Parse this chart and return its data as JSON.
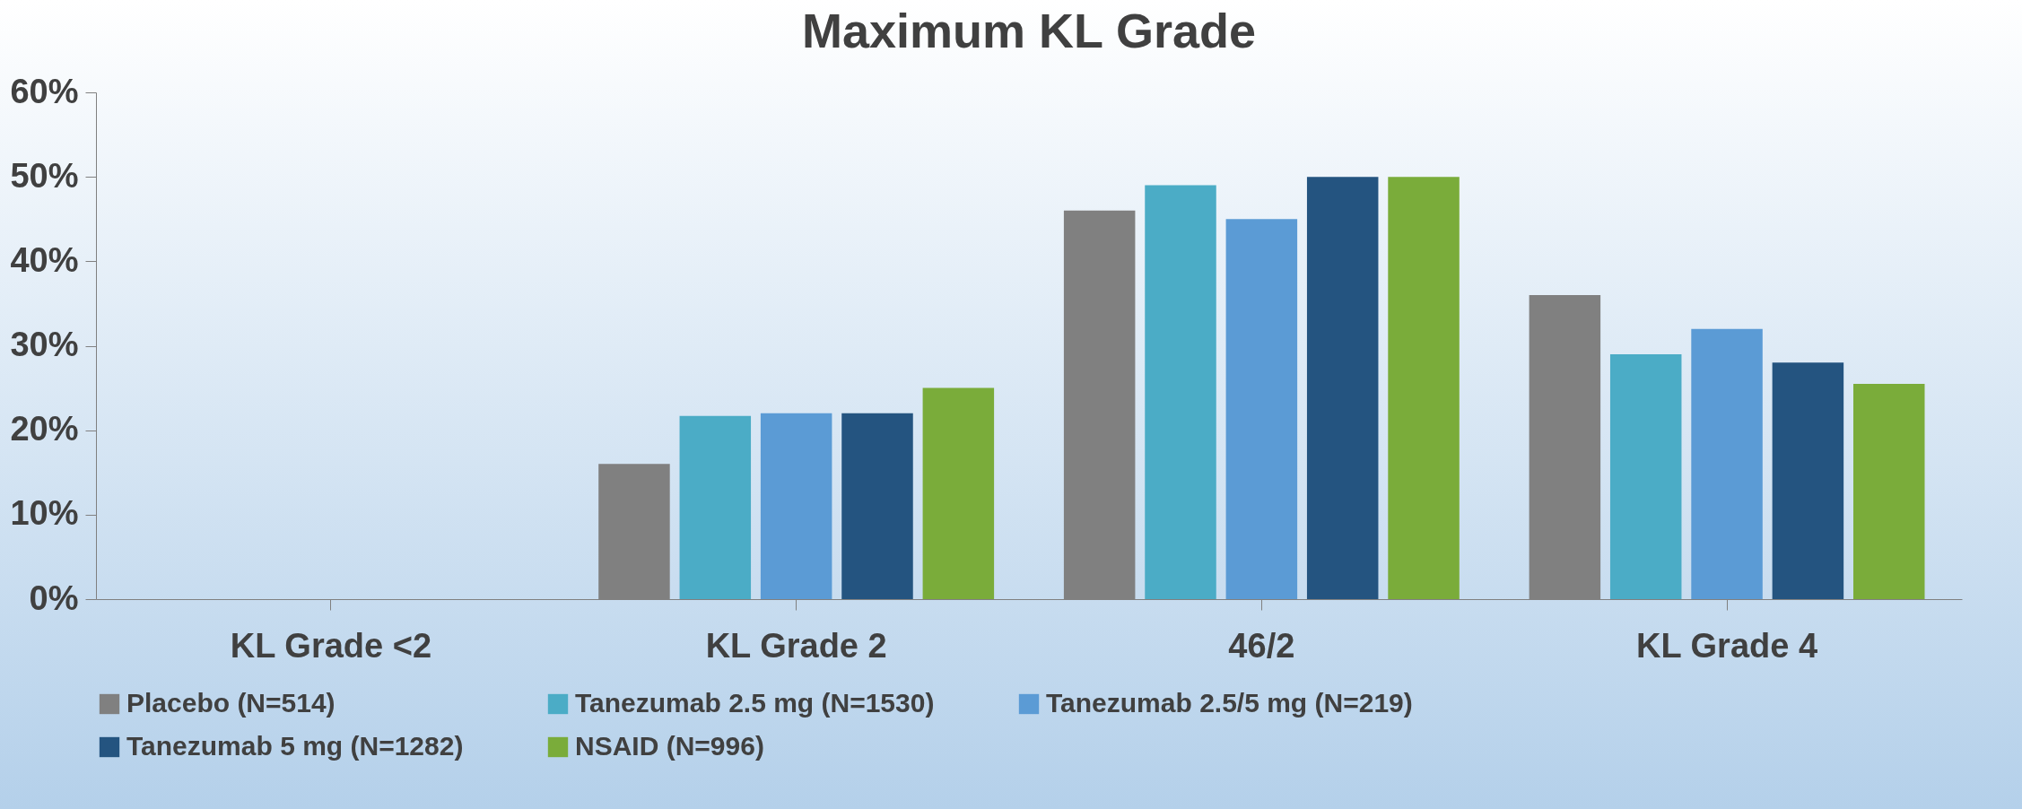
{
  "chart_data": {
    "type": "bar",
    "title": "Maximum KL Grade",
    "categories": [
      "KL Grade <2",
      "KL Grade 2",
      "46/2",
      "KL Grade 4"
    ],
    "series": [
      {
        "name": "Placebo (N=514)",
        "color": "#808080",
        "values": [
          0,
          16,
          46,
          36
        ]
      },
      {
        "name": "Tanezumab 2.5 mg (N=1530)",
        "color": "#4bacc6",
        "values": [
          0,
          21.7,
          49,
          29
        ]
      },
      {
        "name": "Tanezumab 2.5/5 mg (N=219)",
        "color": "#5b9bd5",
        "values": [
          0,
          22,
          45,
          32
        ]
      },
      {
        "name": "Tanezumab 5 mg (N=1282)",
        "color": "#245480",
        "values": [
          0,
          22,
          50,
          28
        ]
      },
      {
        "name": "NSAID (N=996)",
        "color": "#7aac3a",
        "values": [
          0,
          25,
          50,
          25.5
        ]
      }
    ],
    "ylim": [
      0,
      60
    ],
    "yticks": [
      {
        "value": 0,
        "label": "0%"
      },
      {
        "value": 10,
        "label": "10%"
      },
      {
        "value": 20,
        "label": "20%"
      },
      {
        "value": 30,
        "label": "30%"
      },
      {
        "value": 40,
        "label": "40%"
      },
      {
        "value": 50,
        "label": "50%"
      },
      {
        "value": 60,
        "label": "60%"
      }
    ],
    "grid": false,
    "legend": "bottom"
  }
}
